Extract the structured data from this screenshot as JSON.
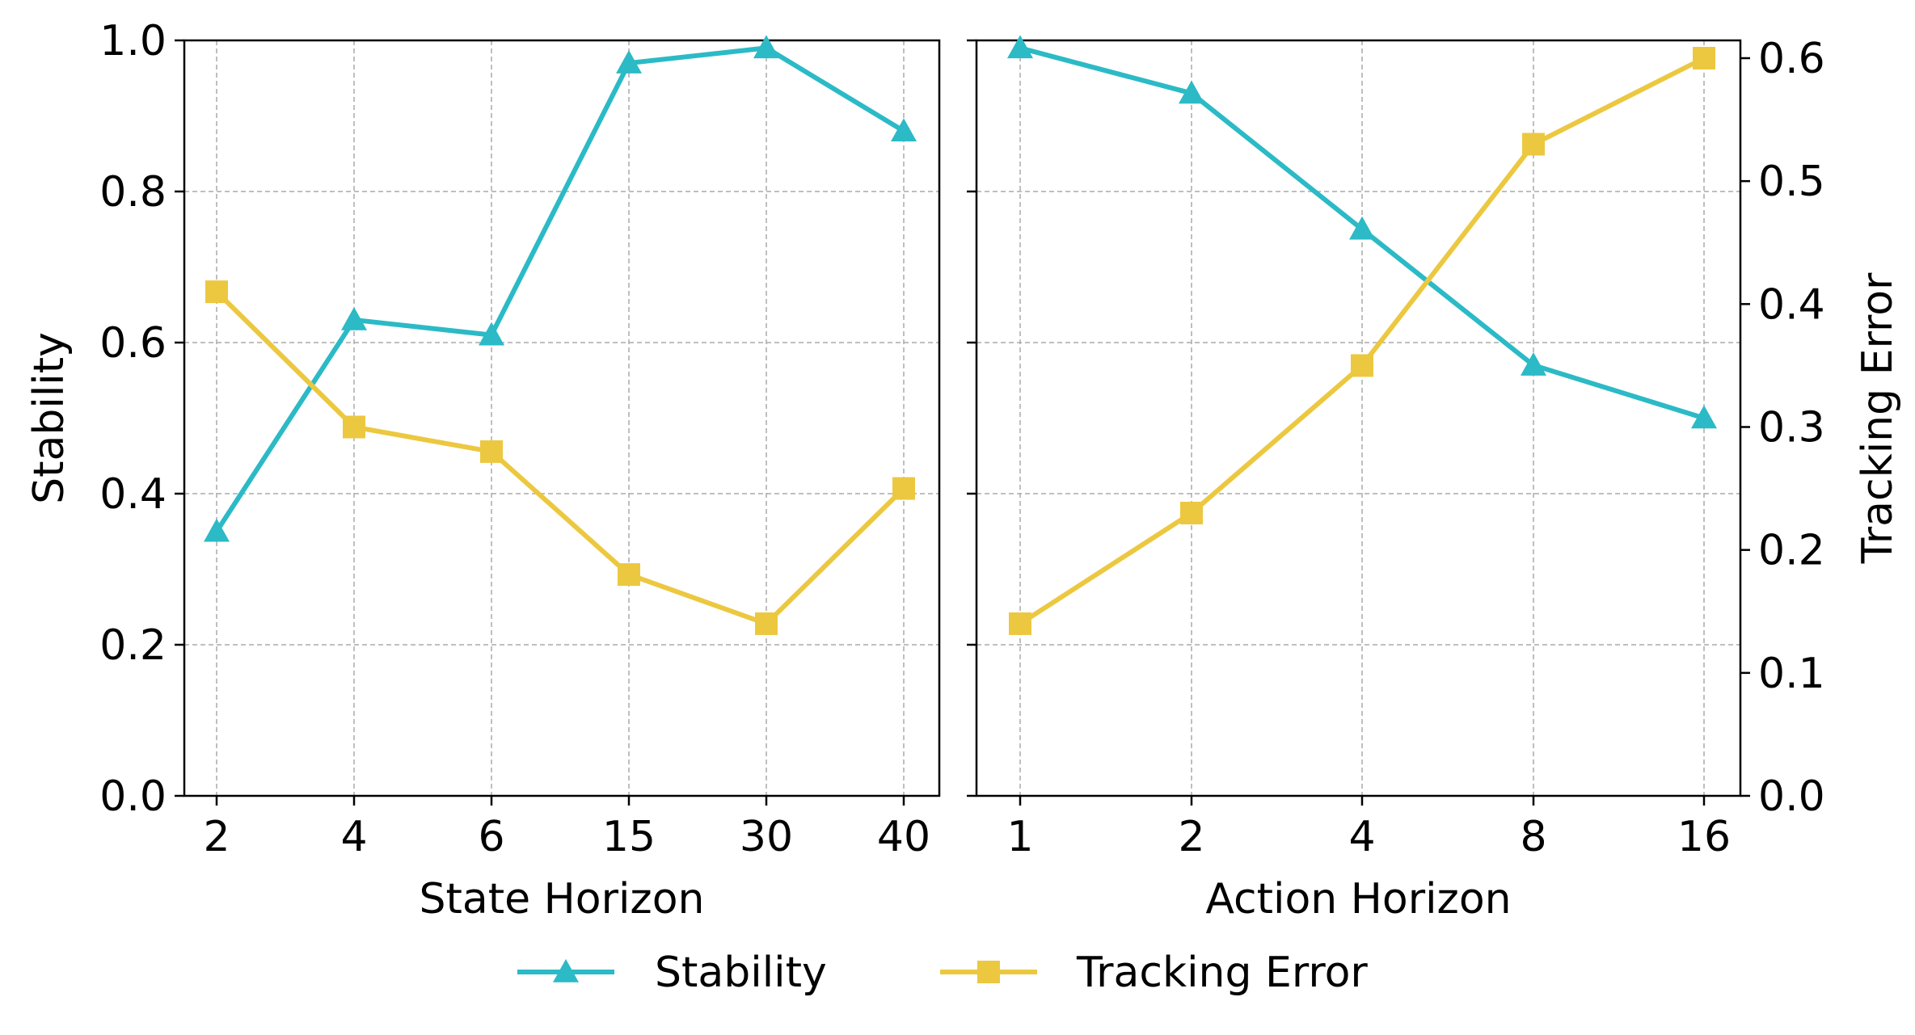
{
  "colors": {
    "stability": "#2bbac6",
    "tracking_error": "#ecc840",
    "grid": "#aaaaaa",
    "axis": "#000000"
  },
  "legend": {
    "placement": "bottom-center",
    "entries": [
      {
        "label": "Stability",
        "marker": "triangle",
        "color": "#2bbac6"
      },
      {
        "label": "Tracking Error",
        "marker": "square",
        "color": "#ecc840"
      }
    ]
  },
  "chart_data": [
    {
      "type": "line",
      "xlabel": "State Horizon",
      "ylabel": "Stability",
      "categories": [
        "2",
        "4",
        "6",
        "15",
        "30",
        "40"
      ],
      "ylim": [
        0.0,
        1.0
      ],
      "yticks": [
        "0.0",
        "0.2",
        "0.4",
        "0.6",
        "0.8",
        "1.0"
      ],
      "y2lim": [
        0.0,
        0.62
      ],
      "grid": true,
      "series": [
        {
          "name": "Stability",
          "axis": "left",
          "marker": "triangle",
          "values": [
            0.35,
            0.63,
            0.61,
            0.97,
            0.99,
            0.88
          ]
        },
        {
          "name": "Tracking Error",
          "axis": "right",
          "marker": "square",
          "values": [
            0.41,
            0.3,
            0.28,
            0.18,
            0.14,
            0.25
          ]
        }
      ]
    },
    {
      "type": "line",
      "xlabel": "Action Horizon",
      "y2label": "Tracking Error",
      "categories": [
        "1",
        "2",
        "4",
        "8",
        "16"
      ],
      "ylim": [
        0.0,
        1.0
      ],
      "y2lim": [
        0.0,
        0.62
      ],
      "y2ticks": [
        "0.0",
        "0.1",
        "0.2",
        "0.3",
        "0.4",
        "0.5",
        "0.6"
      ],
      "grid": true,
      "series": [
        {
          "name": "Stability",
          "axis": "left",
          "marker": "triangle",
          "values": [
            0.99,
            0.93,
            0.75,
            0.57,
            0.5
          ]
        },
        {
          "name": "Tracking Error",
          "axis": "right",
          "marker": "square",
          "values": [
            0.14,
            0.23,
            0.35,
            0.53,
            0.6
          ]
        }
      ]
    }
  ]
}
